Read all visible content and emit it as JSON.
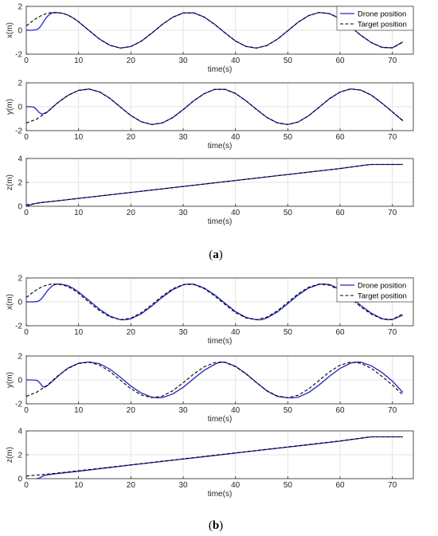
{
  "figure": {
    "captions": [
      "(a)",
      "(b)"
    ],
    "caption_letters": [
      "a",
      "b"
    ]
  },
  "colors": {
    "drone": "#2424c8",
    "target": "#000000",
    "grid": "#e3e3e3"
  },
  "legend": {
    "placement": "top-right",
    "entries": [
      "Drone position",
      "Target position"
    ]
  },
  "chart_data": [
    {
      "id": "a-x",
      "group": "a",
      "type": "line",
      "xlabel": "time(s)",
      "ylabel": "x(m)",
      "xlim": [
        0,
        74
      ],
      "ylim": [
        -2,
        2
      ],
      "xticks": [
        0,
        10,
        20,
        30,
        40,
        50,
        60,
        70
      ],
      "yticks": [
        -2,
        0,
        2
      ],
      "grid": true,
      "legend": true,
      "series": [
        {
          "name": "Drone position",
          "style": "solid",
          "x": [
            0,
            1,
            2,
            2.5,
            3,
            3.5,
            4,
            4.5,
            5,
            5.5,
            6,
            7,
            8,
            9,
            10,
            12,
            14,
            16,
            18,
            20,
            22,
            24,
            26,
            28,
            30,
            32,
            34,
            36,
            38,
            40,
            42,
            44,
            46,
            48,
            50,
            52,
            54,
            56,
            58,
            60,
            62,
            64,
            66,
            68,
            70,
            72
          ],
          "y": [
            0,
            0,
            0.05,
            0.2,
            0.5,
            0.85,
            1.15,
            1.35,
            1.45,
            1.48,
            1.47,
            1.42,
            1.26,
            1.02,
            0.71,
            -0.02,
            -0.74,
            -1.26,
            -1.49,
            -1.36,
            -0.91,
            -0.24,
            0.49,
            1.09,
            1.45,
            1.46,
            1.11,
            0.5,
            -0.22,
            -0.9,
            -1.35,
            -1.49,
            -1.28,
            -0.75,
            -0.04,
            0.68,
            1.23,
            1.49,
            1.39,
            0.96,
            0.3,
            -0.43,
            -1.04,
            -1.43,
            -1.47,
            -0.97
          ]
        },
        {
          "name": "Target position",
          "style": "dashed",
          "x": [
            0,
            1,
            2,
            3,
            4,
            5,
            6,
            7,
            8,
            9,
            10,
            12,
            14,
            16,
            18,
            20,
            22,
            24,
            26,
            28,
            30,
            32,
            34,
            36,
            38,
            40,
            42,
            44,
            46,
            48,
            50,
            52,
            54,
            56,
            58,
            60,
            62,
            64,
            66,
            68,
            70,
            72
          ],
          "y": [
            0.36,
            0.71,
            1.02,
            1.26,
            1.42,
            1.5,
            1.47,
            1.42,
            1.26,
            1.02,
            0.71,
            -0.02,
            -0.74,
            -1.26,
            -1.49,
            -1.36,
            -0.91,
            -0.24,
            0.49,
            1.09,
            1.45,
            1.46,
            1.11,
            0.5,
            -0.22,
            -0.9,
            -1.35,
            -1.49,
            -1.28,
            -0.75,
            -0.04,
            0.68,
            1.23,
            1.49,
            1.39,
            0.96,
            0.3,
            -0.43,
            -1.04,
            -1.43,
            -1.47,
            -1.0
          ]
        }
      ]
    },
    {
      "id": "a-y",
      "group": "a",
      "type": "line",
      "xlabel": "time(s)",
      "ylabel": "y(m)",
      "xlim": [
        0,
        74
      ],
      "ylim": [
        -2,
        2
      ],
      "xticks": [
        0,
        10,
        20,
        30,
        40,
        50,
        60,
        70
      ],
      "yticks": [
        -2,
        0,
        2
      ],
      "grid": true,
      "legend": false,
      "series": [
        {
          "name": "Drone position",
          "style": "solid",
          "x": [
            0,
            1,
            1.5,
            2,
            2.5,
            3,
            4,
            5,
            6,
            8,
            10,
            12,
            14,
            16,
            18,
            20,
            22,
            24,
            26,
            28,
            30,
            32,
            34,
            36,
            38,
            40,
            42,
            44,
            46,
            48,
            50,
            52,
            54,
            56,
            58,
            60,
            62,
            64,
            66,
            68,
            70,
            72
          ],
          "y": [
            0,
            0,
            -0.05,
            -0.25,
            -0.5,
            -0.62,
            -0.45,
            -0.05,
            0.33,
            0.96,
            1.37,
            1.48,
            1.24,
            0.7,
            -0.03,
            -0.74,
            -1.26,
            -1.49,
            -1.36,
            -0.91,
            -0.24,
            0.49,
            1.09,
            1.45,
            1.46,
            1.11,
            0.5,
            -0.22,
            -0.9,
            -1.35,
            -1.49,
            -1.28,
            -0.75,
            -0.04,
            0.68,
            1.23,
            1.49,
            1.39,
            0.96,
            0.3,
            -0.43,
            -1.18
          ]
        },
        {
          "name": "Target position",
          "style": "dashed",
          "x": [
            0,
            2,
            4,
            6,
            8,
            10,
            12,
            14,
            16,
            18,
            20,
            22,
            24,
            26,
            28,
            30,
            32,
            34,
            36,
            38,
            40,
            42,
            44,
            46,
            48,
            50,
            52,
            54,
            56,
            58,
            60,
            62,
            64,
            66,
            68,
            70,
            72
          ],
          "y": [
            -1.37,
            -1.03,
            -0.45,
            0.33,
            0.96,
            1.37,
            1.48,
            1.24,
            0.7,
            -0.03,
            -0.74,
            -1.26,
            -1.49,
            -1.36,
            -0.91,
            -0.24,
            0.49,
            1.09,
            1.45,
            1.46,
            1.11,
            0.5,
            -0.22,
            -0.9,
            -1.35,
            -1.49,
            -1.28,
            -0.75,
            -0.04,
            0.68,
            1.23,
            1.49,
            1.39,
            0.96,
            0.3,
            -0.43,
            -1.15
          ]
        }
      ]
    },
    {
      "id": "a-z",
      "group": "a",
      "type": "line",
      "xlabel": "time(s)",
      "ylabel": "z(m)",
      "xlim": [
        0,
        74
      ],
      "ylim": [
        0,
        4
      ],
      "xticks": [
        0,
        10,
        20,
        30,
        40,
        50,
        60,
        70
      ],
      "yticks": [
        0,
        2,
        4
      ],
      "grid": true,
      "legend": false,
      "series": [
        {
          "name": "Drone position",
          "style": "solid",
          "x": [
            0,
            1,
            2,
            3,
            5,
            10,
            20,
            30,
            40,
            50,
            60,
            65,
            66,
            70,
            72
          ],
          "y": [
            0,
            0.15,
            0.25,
            0.32,
            0.41,
            0.66,
            1.16,
            1.66,
            2.16,
            2.66,
            3.16,
            3.46,
            3.5,
            3.5,
            3.5
          ]
        },
        {
          "name": "Target position",
          "style": "dashed",
          "x": [
            0,
            1,
            2,
            3,
            5,
            10,
            20,
            30,
            40,
            50,
            60,
            65,
            66,
            70,
            72
          ],
          "y": [
            0.12,
            0.18,
            0.26,
            0.32,
            0.41,
            0.66,
            1.16,
            1.66,
            2.16,
            2.66,
            3.16,
            3.46,
            3.5,
            3.5,
            3.5
          ]
        }
      ]
    },
    {
      "id": "b-x",
      "group": "b",
      "type": "line",
      "xlabel": "time(s)",
      "ylabel": "x(m)",
      "xlim": [
        0,
        74
      ],
      "ylim": [
        -2,
        2
      ],
      "xticks": [
        0,
        10,
        20,
        30,
        40,
        50,
        60,
        70
      ],
      "yticks": [
        -2,
        0,
        2
      ],
      "grid": true,
      "legend": true,
      "series": [
        {
          "name": "Drone position",
          "style": "solid",
          "x": [
            0,
            1,
            2,
            2.5,
            3,
            3.5,
            4,
            4.5,
            5,
            5.5,
            6,
            6.5,
            7,
            8,
            9,
            10,
            12,
            14,
            16,
            18,
            19,
            20,
            22,
            24,
            26,
            28,
            30,
            31,
            32,
            34,
            36,
            38,
            40,
            42,
            44,
            45,
            46,
            48,
            50,
            52,
            54,
            56,
            57,
            58,
            60,
            62,
            64,
            66,
            68,
            69,
            70,
            72
          ],
          "y": [
            0,
            0,
            0.02,
            0.1,
            0.3,
            0.6,
            0.9,
            1.15,
            1.35,
            1.45,
            1.5,
            1.48,
            1.45,
            1.35,
            1.12,
            0.82,
            0.12,
            -0.62,
            -1.2,
            -1.5,
            -1.5,
            -1.42,
            -1.0,
            -0.35,
            0.38,
            1.02,
            1.42,
            1.5,
            1.48,
            1.16,
            0.6,
            -0.12,
            -0.82,
            -1.3,
            -1.5,
            -1.5,
            -1.35,
            -0.85,
            -0.15,
            0.58,
            1.16,
            1.47,
            1.5,
            1.45,
            1.05,
            0.42,
            -0.32,
            -0.96,
            -1.4,
            -1.5,
            -1.48,
            -1.12
          ]
        },
        {
          "name": "Target position",
          "style": "dashed",
          "x": [
            0,
            1,
            2,
            3,
            4,
            5,
            6,
            7,
            8,
            9,
            10,
            12,
            14,
            16,
            18,
            20,
            22,
            24,
            26,
            28,
            30,
            32,
            34,
            36,
            38,
            40,
            42,
            44,
            46,
            48,
            50,
            52,
            54,
            56,
            58,
            60,
            62,
            64,
            66,
            68,
            70,
            72
          ],
          "y": [
            0.36,
            0.71,
            1.02,
            1.26,
            1.42,
            1.5,
            1.47,
            1.42,
            1.26,
            1.02,
            0.71,
            -0.02,
            -0.74,
            -1.26,
            -1.49,
            -1.36,
            -0.91,
            -0.24,
            0.49,
            1.09,
            1.45,
            1.46,
            1.11,
            0.5,
            -0.22,
            -0.9,
            -1.35,
            -1.49,
            -1.28,
            -0.75,
            -0.04,
            0.68,
            1.23,
            1.49,
            1.39,
            0.96,
            0.3,
            -0.43,
            -1.04,
            -1.43,
            -1.47,
            -1.0
          ]
        }
      ]
    },
    {
      "id": "b-y",
      "group": "b",
      "type": "line",
      "xlabel": "time(s)",
      "ylabel": "y(m)",
      "xlim": [
        0,
        74
      ],
      "ylim": [
        -2,
        2
      ],
      "xticks": [
        0,
        10,
        20,
        30,
        40,
        50,
        60,
        70
      ],
      "yticks": [
        -2,
        0,
        2
      ],
      "grid": true,
      "legend": false,
      "series": [
        {
          "name": "Drone position",
          "style": "solid",
          "x": [
            0,
            1,
            2,
            2.5,
            3,
            3.5,
            4,
            5,
            6,
            7,
            8,
            10,
            12,
            14,
            16,
            18,
            20,
            22,
            24,
            25,
            26,
            28,
            30,
            32,
            34,
            36,
            37,
            38,
            40,
            42,
            44,
            46,
            48,
            50,
            51,
            52,
            54,
            56,
            58,
            60,
            62,
            63,
            64,
            66,
            68,
            70,
            72
          ],
          "y": [
            0,
            0,
            -0.03,
            -0.2,
            -0.5,
            -0.62,
            -0.5,
            -0.12,
            0.28,
            0.66,
            1.0,
            1.4,
            1.5,
            1.36,
            0.9,
            0.22,
            -0.52,
            -1.1,
            -1.45,
            -1.5,
            -1.48,
            -1.18,
            -0.62,
            0.1,
            0.8,
            1.3,
            1.5,
            1.48,
            1.14,
            0.52,
            -0.22,
            -0.92,
            -1.38,
            -1.5,
            -1.5,
            -1.45,
            -1.05,
            -0.42,
            0.32,
            0.96,
            1.4,
            1.5,
            1.48,
            1.18,
            0.62,
            -0.1,
            -1.05
          ]
        },
        {
          "name": "Target position",
          "style": "dashed",
          "x": [
            0,
            2,
            4,
            6,
            8,
            10,
            12,
            14,
            16,
            18,
            20,
            22,
            24,
            26,
            28,
            30,
            32,
            34,
            36,
            38,
            40,
            42,
            44,
            46,
            48,
            50,
            52,
            54,
            56,
            58,
            60,
            62,
            64,
            66,
            68,
            70,
            72
          ],
          "y": [
            -1.37,
            -1.03,
            -0.45,
            0.33,
            0.96,
            1.37,
            1.48,
            1.24,
            0.7,
            -0.03,
            -0.74,
            -1.26,
            -1.49,
            -1.36,
            -0.91,
            -0.24,
            0.49,
            1.09,
            1.45,
            1.46,
            1.11,
            0.5,
            -0.22,
            -0.9,
            -1.35,
            -1.49,
            -1.28,
            -0.75,
            -0.04,
            0.68,
            1.23,
            1.49,
            1.39,
            0.96,
            0.3,
            -0.43,
            -1.25
          ]
        }
      ]
    },
    {
      "id": "b-z",
      "group": "b",
      "type": "line",
      "xlabel": "time(s)",
      "ylabel": "z(m)",
      "xlim": [
        0,
        74
      ],
      "ylim": [
        0,
        4
      ],
      "xticks": [
        0,
        10,
        20,
        30,
        40,
        50,
        60,
        70
      ],
      "yticks": [
        0,
        2,
        4
      ],
      "grid": true,
      "legend": false,
      "series": [
        {
          "name": "Drone position",
          "style": "solid",
          "x": [
            2,
            2.5,
            3,
            4,
            5,
            10,
            20,
            30,
            40,
            50,
            60,
            65,
            66,
            70,
            72
          ],
          "y": [
            0,
            0.05,
            0.18,
            0.32,
            0.38,
            0.62,
            1.14,
            1.64,
            2.14,
            2.64,
            3.14,
            3.44,
            3.5,
            3.5,
            3.5
          ]
        },
        {
          "name": "Target position",
          "style": "dashed",
          "x": [
            0,
            1,
            2,
            3,
            4,
            5,
            10,
            20,
            30,
            40,
            50,
            60,
            65,
            66,
            70,
            72
          ],
          "y": [
            0.22,
            0.26,
            0.3,
            0.34,
            0.38,
            0.42,
            0.66,
            1.16,
            1.66,
            2.16,
            2.66,
            3.16,
            3.46,
            3.5,
            3.5,
            3.5
          ]
        }
      ]
    }
  ]
}
